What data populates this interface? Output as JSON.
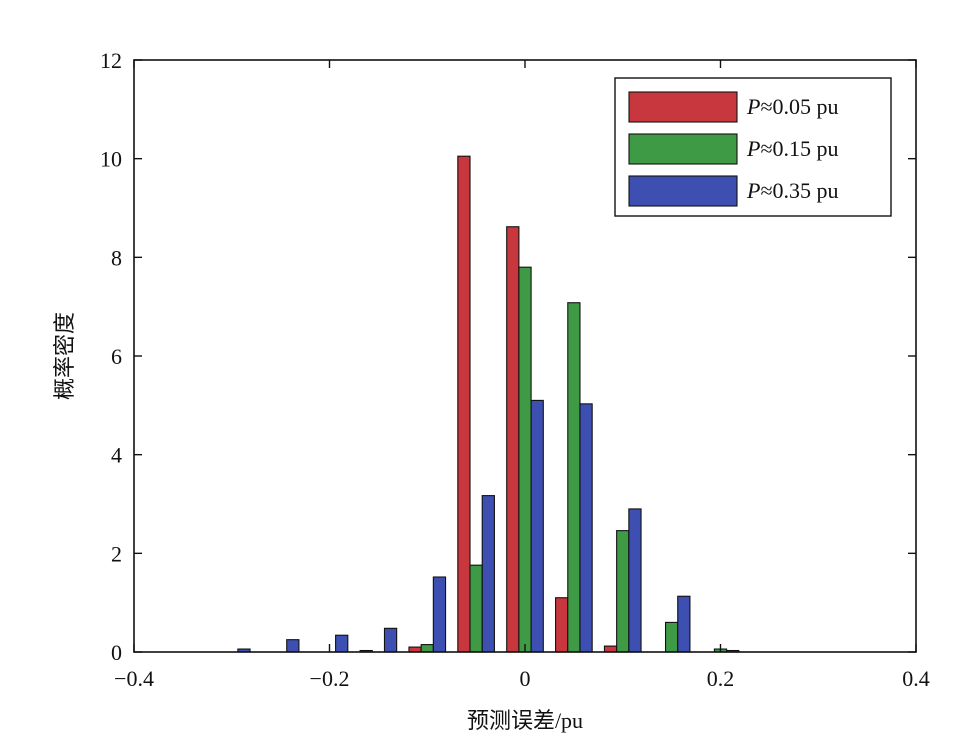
{
  "chart_data": {
    "type": "bar",
    "xlabel": "预测误差/pu",
    "ylabel": "概率密度",
    "xlim": [
      -0.4,
      0.4
    ],
    "ylim": [
      0,
      12
    ],
    "xticks": [
      -0.4,
      -0.2,
      0,
      0.2,
      0.4
    ],
    "xtick_labels": [
      "−0.4",
      "−0.2",
      "0",
      "0.2",
      "0.4"
    ],
    "yticks": [
      0,
      2,
      4,
      6,
      8,
      10,
      12
    ],
    "ytick_labels": [
      "0",
      "2",
      "4",
      "6",
      "8",
      "10",
      "12"
    ],
    "grid": false,
    "legend_position": "top-right",
    "bin_centers": [
      -0.35,
      -0.3,
      -0.25,
      -0.2,
      -0.15,
      -0.1,
      -0.05,
      0.0,
      0.05,
      0.1,
      0.15,
      0.2,
      0.25,
      0.3,
      0.35
    ],
    "series": [
      {
        "name": "P≈0.05 pu",
        "color": "#c8373d",
        "values": [
          0.0,
          0.0,
          0.0,
          0.0,
          0.03,
          0.1,
          10.05,
          8.62,
          1.1,
          0.12,
          0.0,
          0.0,
          0.0,
          0.0,
          0.0
        ]
      },
      {
        "name": "P≈0.15 pu",
        "color": "#3f9a46",
        "values": [
          0.0,
          0.0,
          0.0,
          0.0,
          0.0,
          0.15,
          1.76,
          7.8,
          7.08,
          2.46,
          0.6,
          0.06,
          0.0,
          0.0,
          0.0
        ]
      },
      {
        "name": "P≈0.35 pu",
        "color": "#3d4fb0",
        "values": [
          0.0,
          0.06,
          0.25,
          0.34,
          0.48,
          1.52,
          3.17,
          5.1,
          5.03,
          2.9,
          1.13,
          0.03,
          0.0,
          0.0,
          0.0
        ]
      }
    ],
    "legend_entries": [
      {
        "italic": "P",
        "rest": "≈0.05 pu"
      },
      {
        "italic": "P",
        "rest": "≈0.15 pu"
      },
      {
        "italic": "P",
        "rest": "≈0.35 pu"
      }
    ]
  }
}
